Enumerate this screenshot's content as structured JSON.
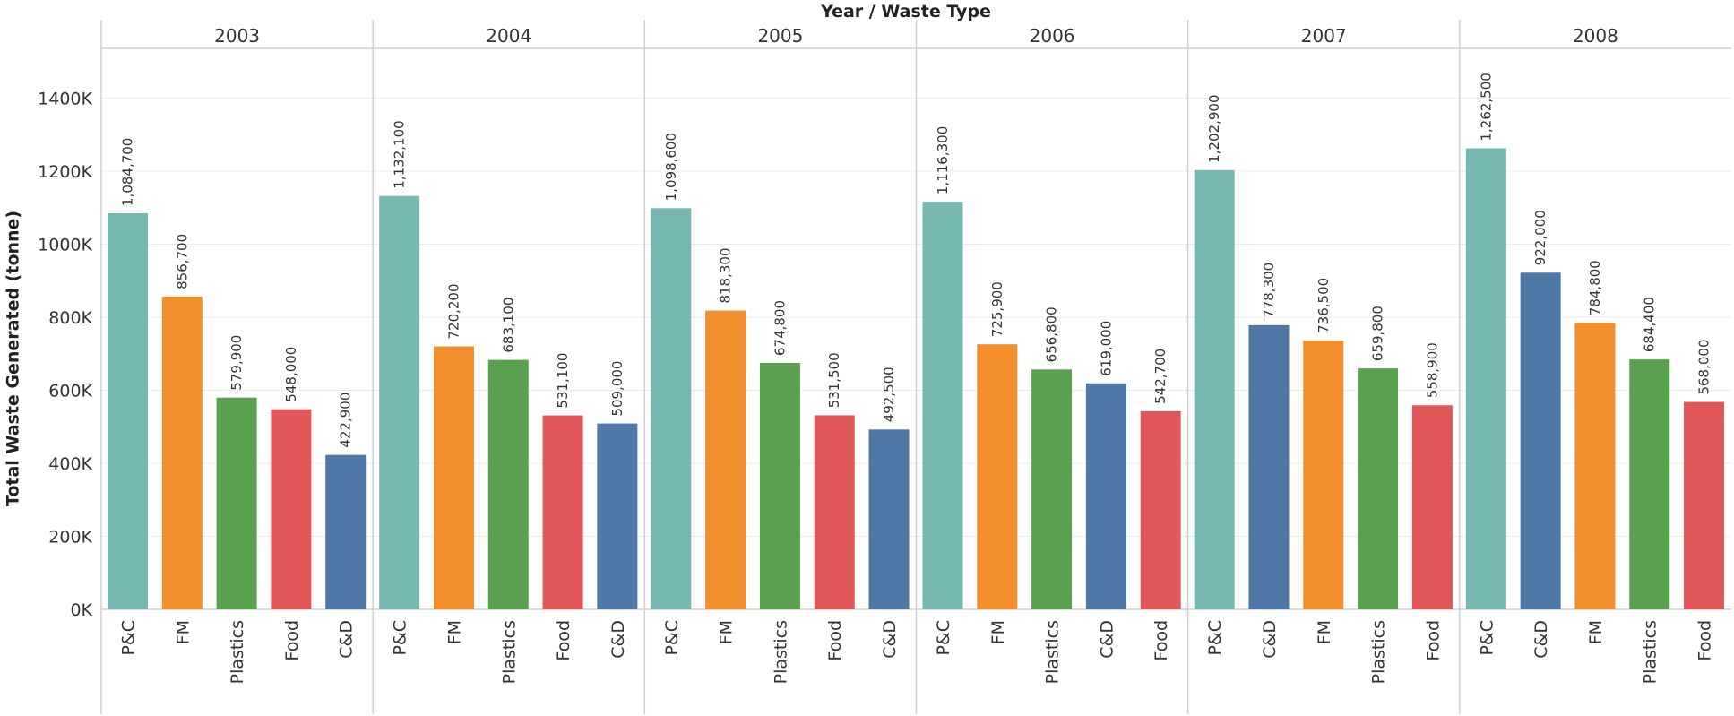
{
  "chart_data": {
    "type": "bar",
    "title": "Year / Waste Type",
    "ylabel": "Total Waste Generated (tonne)",
    "ylim": [
      0,
      1500000
    ],
    "yticks": [
      0,
      200000,
      400000,
      600000,
      800000,
      1000000,
      1200000,
      1400000
    ],
    "ytick_labels": [
      "0K",
      "200K",
      "400K",
      "600K",
      "800K",
      "1000K",
      "1200K",
      "1400K"
    ],
    "colors": {
      "P&C": "#76b7b2",
      "FM": "#f28e2b",
      "Plastics": "#59a14f",
      "Food": "#e15759",
      "C&D": "#4e79a7"
    },
    "groups": [
      {
        "year": "2003",
        "bars": [
          {
            "category": "P&C",
            "value": 1084700,
            "label": "1,084,700"
          },
          {
            "category": "FM",
            "value": 856700,
            "label": "856,700"
          },
          {
            "category": "Plastics",
            "value": 579900,
            "label": "579,900"
          },
          {
            "category": "Food",
            "value": 548000,
            "label": "548,000"
          },
          {
            "category": "C&D",
            "value": 422900,
            "label": "422,900"
          }
        ]
      },
      {
        "year": "2004",
        "bars": [
          {
            "category": "P&C",
            "value": 1132100,
            "label": "1,132,100"
          },
          {
            "category": "FM",
            "value": 720200,
            "label": "720,200"
          },
          {
            "category": "Plastics",
            "value": 683100,
            "label": "683,100"
          },
          {
            "category": "Food",
            "value": 531100,
            "label": "531,100"
          },
          {
            "category": "C&D",
            "value": 509000,
            "label": "509,000"
          }
        ]
      },
      {
        "year": "2005",
        "bars": [
          {
            "category": "P&C",
            "value": 1098600,
            "label": "1,098,600"
          },
          {
            "category": "FM",
            "value": 818300,
            "label": "818,300"
          },
          {
            "category": "Plastics",
            "value": 674800,
            "label": "674,800"
          },
          {
            "category": "Food",
            "value": 531500,
            "label": "531,500"
          },
          {
            "category": "C&D",
            "value": 492500,
            "label": "492,500"
          }
        ]
      },
      {
        "year": "2006",
        "bars": [
          {
            "category": "P&C",
            "value": 1116300,
            "label": "1,116,300"
          },
          {
            "category": "FM",
            "value": 725900,
            "label": "725,900"
          },
          {
            "category": "Plastics",
            "value": 656800,
            "label": "656,800"
          },
          {
            "category": "C&D",
            "value": 619000,
            "label": "619,000"
          },
          {
            "category": "Food",
            "value": 542700,
            "label": "542,700"
          }
        ]
      },
      {
        "year": "2007",
        "bars": [
          {
            "category": "P&C",
            "value": 1202900,
            "label": "1,202,900"
          },
          {
            "category": "C&D",
            "value": 778300,
            "label": "778,300"
          },
          {
            "category": "FM",
            "value": 736500,
            "label": "736,500"
          },
          {
            "category": "Plastics",
            "value": 659800,
            "label": "659,800"
          },
          {
            "category": "Food",
            "value": 558900,
            "label": "558,900"
          }
        ]
      },
      {
        "year": "2008",
        "bars": [
          {
            "category": "P&C",
            "value": 1262500,
            "label": "1,262,500"
          },
          {
            "category": "C&D",
            "value": 922000,
            "label": "922,000"
          },
          {
            "category": "FM",
            "value": 784800,
            "label": "784,800"
          },
          {
            "category": "Plastics",
            "value": 684400,
            "label": "684,400"
          },
          {
            "category": "Food",
            "value": 568000,
            "label": "568,000"
          }
        ]
      }
    ],
    "grid": true,
    "legend": "none"
  }
}
